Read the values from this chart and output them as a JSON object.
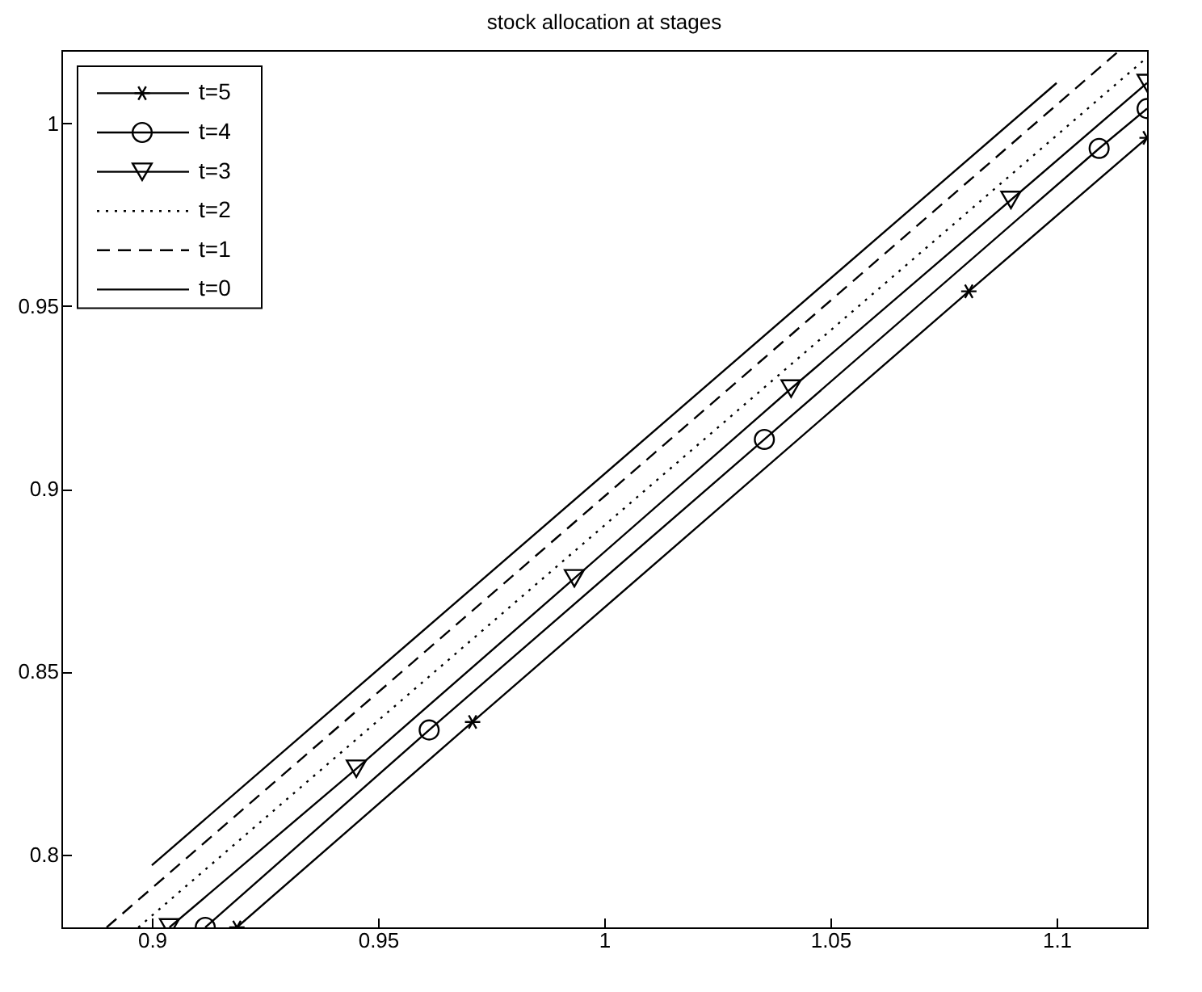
{
  "chart_data": {
    "type": "line",
    "title": "stock allocation at stages",
    "xlim": [
      0.88,
      1.12
    ],
    "ylim": [
      0.78,
      1.02
    ],
    "xticks": [
      0.9,
      0.95,
      1,
      1.05,
      1.1
    ],
    "yticks": [
      0.8,
      0.85,
      0.9,
      0.95,
      1
    ],
    "grid": false,
    "legend": "top left",
    "series": [
      {
        "name": "t=5",
        "color": "#000000",
        "line_style": "solid",
        "marker": "cross",
        "x": [
          0.9188,
          0.9709,
          1.0806,
          1.12
        ],
        "values": [
          0.78,
          0.8362,
          0.954,
          0.996
        ]
      },
      {
        "name": "t=4",
        "color": "#000000",
        "line_style": "solid",
        "marker": "circle",
        "x": [
          0.9118,
          0.9613,
          1.0354,
          1.1094,
          1.12
        ],
        "values": [
          0.78,
          0.834,
          0.9135,
          0.9931,
          1.004
        ]
      },
      {
        "name": "t=3",
        "color": "#000000",
        "line_style": "solid",
        "marker": "triangle",
        "x": [
          0.9039,
          0.9452,
          0.9934,
          1.0413,
          1.0899,
          1.12
        ],
        "values": [
          0.78,
          0.8234,
          0.8755,
          0.9274,
          0.979,
          1.011
        ]
      },
      {
        "name": "t=2",
        "color": "#000000",
        "line_style": "dotted",
        "marker": "none",
        "x": [
          0.897,
          1.12
        ],
        "values": [
          0.78,
          1.018
        ]
      },
      {
        "name": "t=1",
        "color": "#000000",
        "line_style": "dashed",
        "marker": "none",
        "x": [
          0.89,
          1.114
        ],
        "values": [
          0.78,
          1.02
        ]
      },
      {
        "name": "t=0",
        "color": "#000000",
        "line_style": "solid",
        "marker": "none",
        "x": [
          0.9,
          1.1
        ],
        "values": [
          0.797,
          1.011
        ]
      }
    ]
  }
}
